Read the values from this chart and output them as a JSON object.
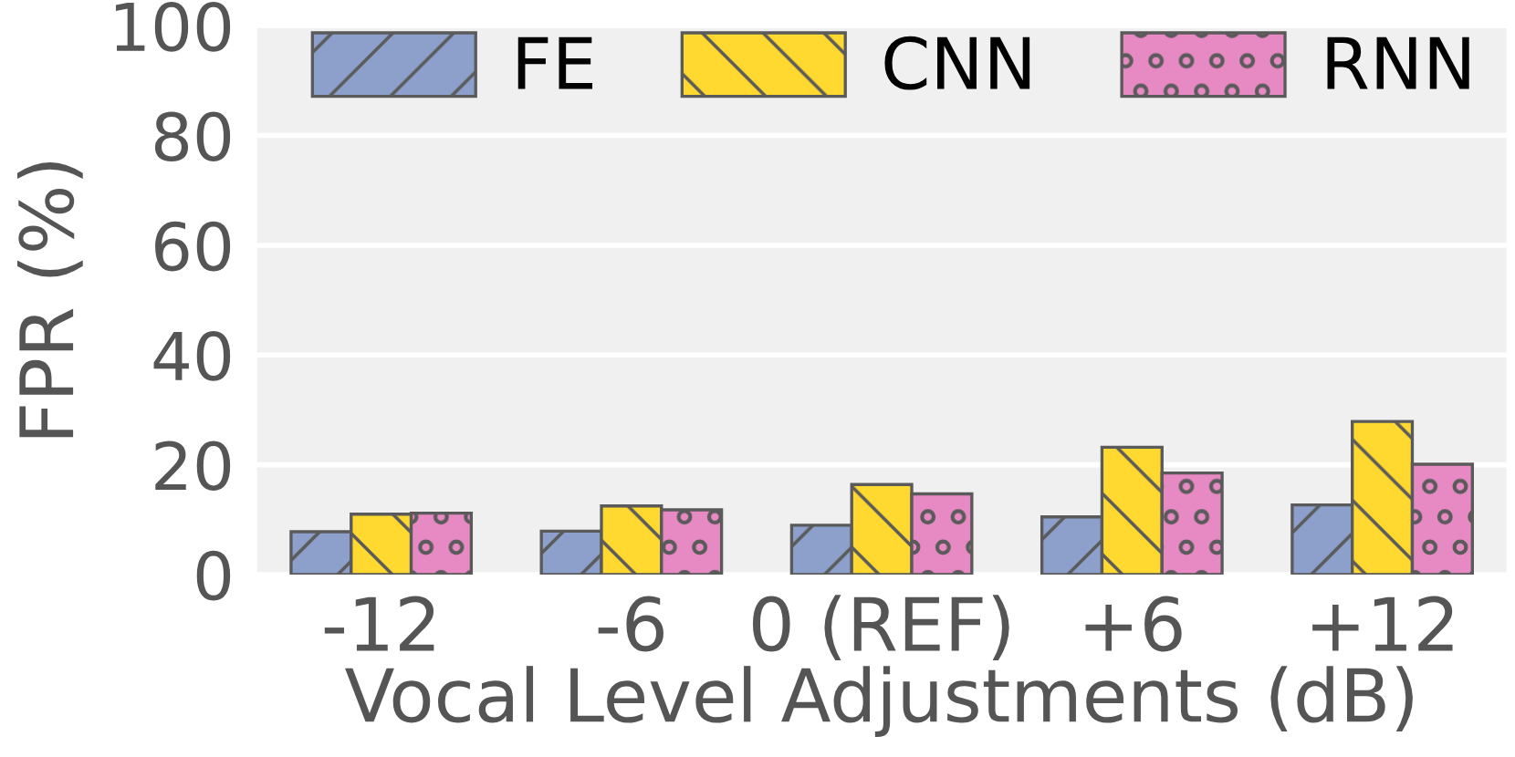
{
  "chart_data": {
    "type": "bar",
    "xlabel": "Vocal Level Adjustments (dB)",
    "ylabel": "FPR (%)",
    "categories": [
      "-12",
      "-6",
      "0 (REF)",
      "+6",
      "+12"
    ],
    "series": [
      {
        "name": "FE",
        "color": "#8da0cb",
        "values": [
          7.8,
          7.9,
          9.0,
          10.5,
          12.7
        ]
      },
      {
        "name": "CNN",
        "color": "#ffd92f",
        "values": [
          11.0,
          12.5,
          16.4,
          23.2,
          27.9
        ]
      },
      {
        "name": "RNN",
        "color": "#e78ac3",
        "values": [
          11.2,
          11.8,
          14.7,
          18.5,
          20.1
        ]
      }
    ],
    "ylim": [
      0,
      100
    ],
    "yticks": [
      0,
      20,
      40,
      60,
      80,
      100
    ],
    "grid": "y",
    "legend": "top"
  }
}
